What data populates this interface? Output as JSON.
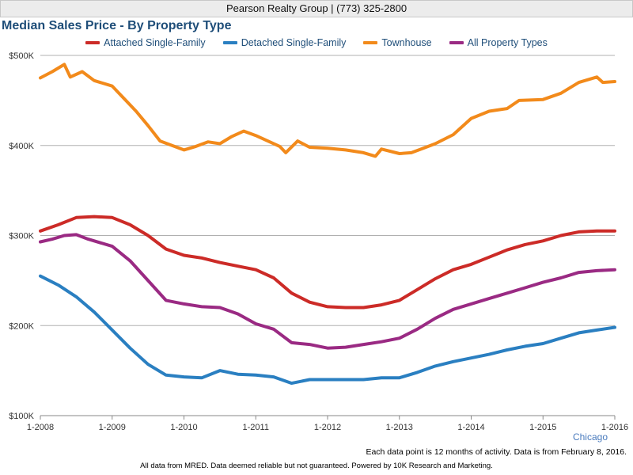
{
  "header": {
    "text": "Pearson Realty Group | (773) 325-2800"
  },
  "region": "Chicago",
  "footnotes": {
    "activity": "Each data point is 12 months of activity. Data is from February 8, 2016.",
    "disclaimer": "All data from MRED. Data deemed reliable but not guaranteed. Powered by 10K Research and Marketing."
  },
  "colors": {
    "attached": "#cc2b27",
    "detached": "#2a7fc1",
    "townhouse": "#f28a1b",
    "all": "#9a2a83",
    "grid": "#b0b0b0",
    "title": "#1f4e79"
  },
  "chart_data": {
    "type": "line",
    "title": "Median Sales Price - By Property Type",
    "ylim": [
      100000,
      500000
    ],
    "y_ticks": [
      {
        "value": 100000,
        "label": "$100K"
      },
      {
        "value": 200000,
        "label": "$200K"
      },
      {
        "value": 300000,
        "label": "$300K"
      },
      {
        "value": 400000,
        "label": "$400K"
      },
      {
        "value": 500000,
        "label": "$500K"
      }
    ],
    "x_range": [
      "2008-01",
      "2016-01"
    ],
    "x_ticks": [
      "1-2008",
      "1-2009",
      "1-2010",
      "1-2011",
      "1-2012",
      "1-2013",
      "1-2014",
      "1-2015",
      "1-2016"
    ],
    "grid": "horizontal",
    "legend_position": "top",
    "series": [
      {
        "name": "Attached Single-Family",
        "color_key": "attached",
        "points": [
          [
            "2008-01",
            305000
          ],
          [
            "2008-04",
            312000
          ],
          [
            "2008-07",
            320000
          ],
          [
            "2008-10",
            321000
          ],
          [
            "2009-01",
            320000
          ],
          [
            "2009-04",
            312000
          ],
          [
            "2009-07",
            300000
          ],
          [
            "2009-10",
            285000
          ],
          [
            "2010-01",
            278000
          ],
          [
            "2010-04",
            275000
          ],
          [
            "2010-07",
            270000
          ],
          [
            "2010-10",
            266000
          ],
          [
            "2011-01",
            262000
          ],
          [
            "2011-04",
            253000
          ],
          [
            "2011-07",
            236000
          ],
          [
            "2011-10",
            226000
          ],
          [
            "2012-01",
            221000
          ],
          [
            "2012-04",
            220000
          ],
          [
            "2012-07",
            220000
          ],
          [
            "2012-10",
            223000
          ],
          [
            "2013-01",
            228000
          ],
          [
            "2013-04",
            240000
          ],
          [
            "2013-07",
            252000
          ],
          [
            "2013-10",
            262000
          ],
          [
            "2014-01",
            268000
          ],
          [
            "2014-04",
            276000
          ],
          [
            "2014-07",
            284000
          ],
          [
            "2014-10",
            290000
          ],
          [
            "2015-01",
            294000
          ],
          [
            "2015-04",
            300000
          ],
          [
            "2015-07",
            304000
          ],
          [
            "2015-10",
            305000
          ],
          [
            "2016-01",
            305000
          ]
        ]
      },
      {
        "name": "Detached Single-Family",
        "color_key": "detached",
        "points": [
          [
            "2008-01",
            255000
          ],
          [
            "2008-04",
            245000
          ],
          [
            "2008-07",
            232000
          ],
          [
            "2008-10",
            215000
          ],
          [
            "2009-01",
            195000
          ],
          [
            "2009-04",
            175000
          ],
          [
            "2009-07",
            157000
          ],
          [
            "2009-10",
            145000
          ],
          [
            "2010-01",
            143000
          ],
          [
            "2010-04",
            142000
          ],
          [
            "2010-07",
            150000
          ],
          [
            "2010-10",
            146000
          ],
          [
            "2011-01",
            145000
          ],
          [
            "2011-04",
            143000
          ],
          [
            "2011-07",
            136000
          ],
          [
            "2011-10",
            140000
          ],
          [
            "2012-01",
            140000
          ],
          [
            "2012-04",
            140000
          ],
          [
            "2012-07",
            140000
          ],
          [
            "2012-10",
            142000
          ],
          [
            "2013-01",
            142000
          ],
          [
            "2013-04",
            148000
          ],
          [
            "2013-07",
            155000
          ],
          [
            "2013-10",
            160000
          ],
          [
            "2014-01",
            164000
          ],
          [
            "2014-04",
            168000
          ],
          [
            "2014-07",
            173000
          ],
          [
            "2014-10",
            177000
          ],
          [
            "2015-01",
            180000
          ],
          [
            "2015-04",
            186000
          ],
          [
            "2015-07",
            192000
          ],
          [
            "2015-10",
            195000
          ],
          [
            "2016-01",
            198000
          ]
        ]
      },
      {
        "name": "Townhouse",
        "color_key": "townhouse",
        "points": [
          [
            "2008-01",
            475000
          ],
          [
            "2008-03",
            482000
          ],
          [
            "2008-05",
            490000
          ],
          [
            "2008-06",
            476000
          ],
          [
            "2008-08",
            482000
          ],
          [
            "2008-10",
            472000
          ],
          [
            "2009-01",
            466000
          ],
          [
            "2009-03",
            452000
          ],
          [
            "2009-05",
            438000
          ],
          [
            "2009-07",
            422000
          ],
          [
            "2009-09",
            405000
          ],
          [
            "2010-01",
            395000
          ],
          [
            "2010-03",
            399000
          ],
          [
            "2010-05",
            404000
          ],
          [
            "2010-07",
            402000
          ],
          [
            "2010-09",
            410000
          ],
          [
            "2010-11",
            416000
          ],
          [
            "2011-01",
            411000
          ],
          [
            "2011-03",
            405000
          ],
          [
            "2011-05",
            399000
          ],
          [
            "2011-06",
            392000
          ],
          [
            "2011-08",
            405000
          ],
          [
            "2011-10",
            398000
          ],
          [
            "2012-01",
            397000
          ],
          [
            "2012-04",
            395000
          ],
          [
            "2012-07",
            392000
          ],
          [
            "2012-09",
            388000
          ],
          [
            "2012-10",
            396000
          ],
          [
            "2013-01",
            391000
          ],
          [
            "2013-03",
            392000
          ],
          [
            "2013-05",
            397000
          ],
          [
            "2013-07",
            402000
          ],
          [
            "2013-10",
            412000
          ],
          [
            "2014-01",
            430000
          ],
          [
            "2014-04",
            438000
          ],
          [
            "2014-07",
            441000
          ],
          [
            "2014-09",
            450000
          ],
          [
            "2015-01",
            451000
          ],
          [
            "2015-04",
            458000
          ],
          [
            "2015-07",
            470000
          ],
          [
            "2015-10",
            476000
          ],
          [
            "2015-11",
            470000
          ],
          [
            "2016-01",
            471000
          ]
        ]
      },
      {
        "name": "All Property Types",
        "color_key": "all",
        "points": [
          [
            "2008-01",
            293000
          ],
          [
            "2008-03",
            296000
          ],
          [
            "2008-05",
            300000
          ],
          [
            "2008-07",
            301000
          ],
          [
            "2008-09",
            296000
          ],
          [
            "2009-01",
            288000
          ],
          [
            "2009-04",
            272000
          ],
          [
            "2009-07",
            250000
          ],
          [
            "2009-10",
            228000
          ],
          [
            "2010-01",
            224000
          ],
          [
            "2010-04",
            221000
          ],
          [
            "2010-07",
            220000
          ],
          [
            "2010-10",
            213000
          ],
          [
            "2011-01",
            202000
          ],
          [
            "2011-04",
            196000
          ],
          [
            "2011-07",
            181000
          ],
          [
            "2011-10",
            179000
          ],
          [
            "2012-01",
            175000
          ],
          [
            "2012-04",
            176000
          ],
          [
            "2012-07",
            179000
          ],
          [
            "2012-10",
            182000
          ],
          [
            "2013-01",
            186000
          ],
          [
            "2013-04",
            196000
          ],
          [
            "2013-07",
            208000
          ],
          [
            "2013-10",
            218000
          ],
          [
            "2014-01",
            224000
          ],
          [
            "2014-04",
            230000
          ],
          [
            "2014-07",
            236000
          ],
          [
            "2014-10",
            242000
          ],
          [
            "2015-01",
            248000
          ],
          [
            "2015-04",
            253000
          ],
          [
            "2015-07",
            259000
          ],
          [
            "2015-10",
            261000
          ],
          [
            "2016-01",
            262000
          ]
        ]
      }
    ]
  }
}
